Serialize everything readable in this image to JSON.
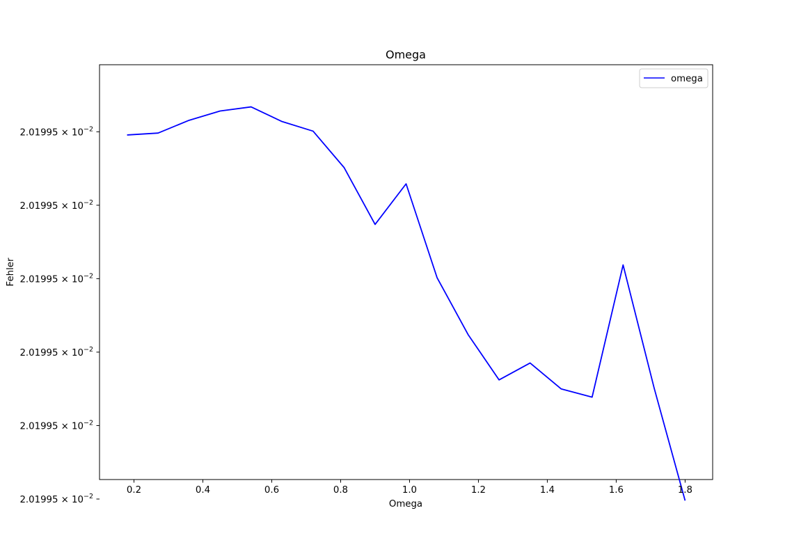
{
  "chart_data": {
    "type": "line",
    "title": "Omega",
    "xlabel": "Omega",
    "ylabel": "Fehler",
    "xlim": [
      0.1,
      1.88
    ],
    "ylim": [
      0.01,
      13.0
    ],
    "x_ticks": [
      0.2,
      0.4,
      0.6,
      0.8,
      1.0,
      1.2,
      1.4,
      1.6,
      1.8
    ],
    "x_tick_labels": [
      "0.2",
      "0.4",
      "0.6",
      "0.8",
      "1.0",
      "1.2",
      "1.4",
      "1.6",
      "1.8"
    ],
    "y_ticks": [
      10.9,
      8.6,
      6.3,
      4.0,
      1.7,
      -0.6
    ],
    "y_tick_labels": [
      "2.01995 × 10^-2",
      "2.01995 × 10^-2",
      "2.01995 × 10^-2",
      "2.01995 × 10^-2",
      "2.01995 × 10^-2",
      "2.01995 × 10^-2"
    ],
    "legend_position": "top-right",
    "grid": false,
    "series": [
      {
        "name": "omega",
        "color": "#0000ff",
        "x": [
          0.18,
          0.27,
          0.36,
          0.45,
          0.54,
          0.63,
          0.72,
          0.81,
          0.9,
          0.99,
          1.08,
          1.17,
          1.26,
          1.35,
          1.44,
          1.53,
          1.62,
          1.71,
          1.8
        ],
        "y": [
          10.8,
          10.86,
          11.26,
          11.55,
          11.68,
          11.22,
          10.92,
          9.78,
          8.0,
          9.27,
          6.33,
          4.55,
          3.13,
          3.66,
          2.85,
          2.59,
          6.73,
          2.88,
          -0.65
        ]
      }
    ]
  }
}
